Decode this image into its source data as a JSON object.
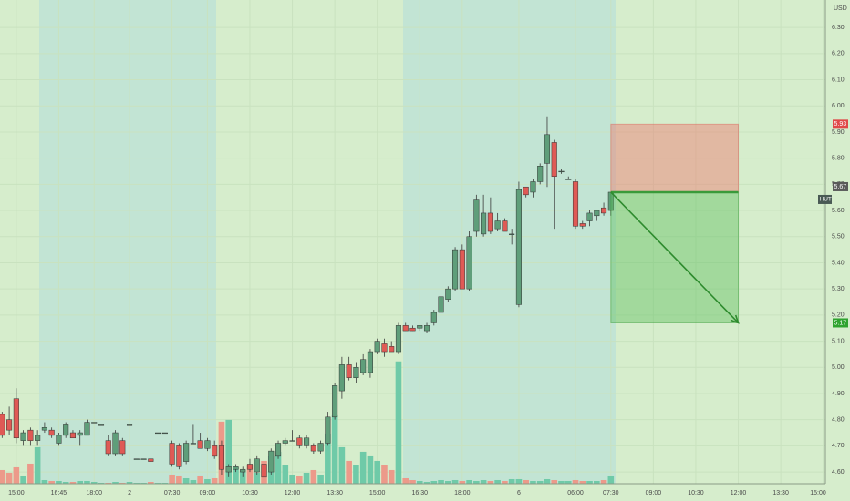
{
  "chart_data": {
    "type": "candlestick",
    "symbol": "HUT",
    "currency": "USD",
    "open": [
      4.82,
      4.8,
      4.88,
      4.72,
      4.76,
      4.72,
      4.76,
      4.76,
      4.71,
      4.74,
      4.75,
      4.74,
      4.74,
      4.79,
      4.78,
      4.72,
      4.67,
      4.72,
      4.78,
      4.65,
      4.65,
      4.65,
      4.75,
      4.75,
      4.71,
      4.7,
      4.64,
      4.71,
      4.72,
      4.69,
      4.7,
      4.7,
      4.6,
      4.61,
      4.6,
      4.63,
      4.6,
      4.63,
      4.6,
      4.66,
      4.71,
      4.72,
      4.73,
      4.7,
      4.7,
      4.68,
      4.71,
      4.81,
      4.91,
      5.01,
      4.96,
      4.98,
      4.98,
      5.06,
      5.09,
      5.08,
      5.06,
      5.16,
      5.15,
      5.15,
      5.14,
      5.17,
      5.21,
      5.26,
      5.3,
      5.45,
      5.3,
      5.52,
      5.51,
      5.59,
      5.53,
      5.56,
      5.51,
      5.24,
      5.69,
      5.67,
      5.71,
      5.78,
      5.86,
      5.75,
      5.72,
      5.71,
      5.55,
      5.56,
      5.58,
      5.61,
      5.6
    ],
    "high": [
      4.83,
      4.85,
      4.92,
      4.76,
      4.77,
      4.76,
      4.79,
      4.77,
      4.75,
      4.79,
      4.76,
      4.76,
      4.8,
      4.79,
      4.78,
      4.74,
      4.76,
      4.73,
      4.78,
      4.65,
      4.65,
      4.65,
      4.75,
      4.75,
      4.72,
      4.71,
      4.72,
      4.78,
      4.75,
      4.73,
      4.72,
      4.72,
      4.63,
      4.63,
      4.62,
      4.65,
      4.66,
      4.65,
      4.69,
      4.72,
      4.73,
      4.76,
      4.74,
      4.74,
      4.71,
      4.72,
      4.83,
      4.94,
      5.04,
      5.04,
      5.02,
      5.05,
      5.07,
      5.11,
      5.11,
      5.1,
      5.17,
      5.17,
      5.16,
      5.16,
      5.17,
      5.22,
      5.28,
      5.31,
      5.46,
      5.47,
      5.52,
      5.66,
      5.66,
      5.65,
      5.59,
      5.57,
      5.53,
      5.71,
      5.69,
      5.72,
      5.78,
      5.96,
      5.87,
      5.76,
      5.73,
      5.72,
      5.56,
      5.6,
      5.6,
      5.63,
      5.67
    ],
    "low": [
      4.73,
      4.74,
      4.71,
      4.7,
      4.7,
      4.7,
      4.75,
      4.73,
      4.7,
      4.73,
      4.73,
      4.7,
      4.74,
      4.79,
      4.78,
      4.66,
      4.66,
      4.66,
      4.78,
      4.65,
      4.65,
      4.64,
      4.75,
      4.75,
      4.62,
      4.61,
      4.63,
      4.71,
      4.69,
      4.68,
      4.65,
      4.59,
      4.58,
      4.6,
      4.58,
      4.6,
      4.59,
      4.57,
      4.59,
      4.65,
      4.7,
      4.72,
      4.69,
      4.69,
      4.67,
      4.67,
      4.7,
      4.8,
      4.88,
      4.95,
      4.94,
      4.97,
      4.96,
      5.05,
      5.04,
      5.06,
      5.05,
      5.14,
      5.14,
      5.14,
      5.13,
      5.16,
      5.2,
      5.25,
      5.29,
      5.3,
      5.29,
      5.5,
      5.5,
      5.51,
      5.52,
      5.52,
      5.47,
      5.23,
      5.65,
      5.65,
      5.7,
      5.69,
      5.53,
      5.74,
      5.72,
      5.53,
      5.53,
      5.54,
      5.56,
      5.58,
      5.58
    ],
    "close": [
      4.74,
      4.76,
      4.73,
      4.75,
      4.72,
      4.74,
      4.77,
      4.74,
      4.74,
      4.78,
      4.73,
      4.75,
      4.79,
      4.79,
      4.78,
      4.67,
      4.75,
      4.67,
      4.78,
      4.65,
      4.65,
      4.64,
      4.75,
      4.75,
      4.63,
      4.62,
      4.71,
      4.71,
      4.69,
      4.72,
      4.66,
      4.61,
      4.62,
      4.62,
      4.61,
      4.61,
      4.65,
      4.58,
      4.68,
      4.71,
      4.72,
      4.72,
      4.7,
      4.73,
      4.68,
      4.71,
      4.81,
      4.93,
      5.01,
      4.96,
      5.0,
      5.03,
      5.06,
      5.1,
      5.06,
      5.06,
      5.16,
      5.14,
      5.14,
      5.16,
      5.16,
      5.21,
      5.27,
      5.3,
      5.45,
      5.3,
      5.5,
      5.64,
      5.59,
      5.52,
      5.56,
      5.52,
      5.51,
      5.68,
      5.66,
      5.71,
      5.77,
      5.89,
      5.73,
      5.75,
      5.72,
      5.54,
      5.54,
      5.59,
      5.6,
      5.59,
      5.67
    ],
    "volume": [
      15,
      12,
      18,
      8,
      22,
      40,
      4,
      3,
      3,
      2,
      2,
      3,
      3,
      2,
      1,
      1,
      2,
      1,
      2,
      1,
      1,
      2,
      1,
      1,
      10,
      8,
      6,
      4,
      8,
      5,
      6,
      68,
      70,
      18,
      15,
      20,
      12,
      25,
      30,
      35,
      20,
      10,
      8,
      12,
      15,
      10,
      55,
      75,
      40,
      25,
      20,
      35,
      30,
      25,
      20,
      15,
      134,
      6,
      4,
      3,
      2,
      3,
      4,
      3,
      4,
      3,
      4,
      3,
      4,
      3,
      4,
      3,
      5,
      5,
      4,
      3,
      3,
      5,
      4,
      3,
      3,
      4,
      3,
      3,
      3,
      4,
      8
    ],
    "volume_lim": [
      0,
      530
    ],
    "up_color": "#5f9e7a",
    "down_color": "#df5a55",
    "volume_up_color": "#6fcaa8",
    "volume_down_color": "#ec9a8a",
    "xlim": [
      -0.3,
      116.3
    ],
    "xticks": [
      {
        "value": 2,
        "label": "15:00"
      },
      {
        "value": 8,
        "label": "16:45"
      },
      {
        "value": 13,
        "label": "18:00"
      },
      {
        "value": 18,
        "label": "2"
      },
      {
        "value": 24,
        "label": "07:30"
      },
      {
        "value": 29,
        "label": "09:00"
      },
      {
        "value": 35,
        "label": "10:30"
      },
      {
        "value": 41,
        "label": "12:00"
      },
      {
        "value": 47,
        "label": "13:30"
      },
      {
        "value": 53,
        "label": "15:00"
      },
      {
        "value": 59,
        "label": "16:30"
      },
      {
        "value": 65,
        "label": "18:00"
      },
      {
        "value": 73,
        "label": "6"
      },
      {
        "value": 81,
        "label": "06:00"
      },
      {
        "value": 86,
        "label": "07:30"
      },
      {
        "value": 92,
        "label": "09:00"
      },
      {
        "value": 98,
        "label": "10:30"
      },
      {
        "value": 104,
        "label": "12:00"
      },
      {
        "value": 110,
        "label": "13:30"
      },
      {
        "value": 116,
        "label": "15:00"
      }
    ],
    "ylim": [
      4.555,
      6.405
    ],
    "yticks": [
      {
        "value": 4.6,
        "label": "4.60"
      },
      {
        "value": 4.7,
        "label": "4.70"
      },
      {
        "value": 4.8,
        "label": "4.80"
      },
      {
        "value": 4.9,
        "label": "4.90"
      },
      {
        "value": 5.0,
        "label": "5.00"
      },
      {
        "value": 5.1,
        "label": "5.10"
      },
      {
        "value": 5.2,
        "label": "5.20"
      },
      {
        "value": 5.3,
        "label": "5.30"
      },
      {
        "value": 5.4,
        "label": "5.40"
      },
      {
        "value": 5.5,
        "label": "5.50"
      },
      {
        "value": 5.6,
        "label": "5.60"
      },
      {
        "value": 5.7,
        "label": "5.70"
      },
      {
        "value": 5.8,
        "label": "5.80"
      },
      {
        "value": 5.9,
        "label": "5.90"
      },
      {
        "value": 6.0,
        "label": "6.00"
      },
      {
        "value": 6.1,
        "label": "6.10"
      },
      {
        "value": 6.2,
        "label": "6.20"
      },
      {
        "value": 6.3,
        "label": "6.30"
      }
    ],
    "grid": true,
    "last_price": 5.67,
    "position": {
      "entry": 5.67,
      "stop": 5.93,
      "target": 5.17,
      "start": 86,
      "end": 104
    }
  }
}
